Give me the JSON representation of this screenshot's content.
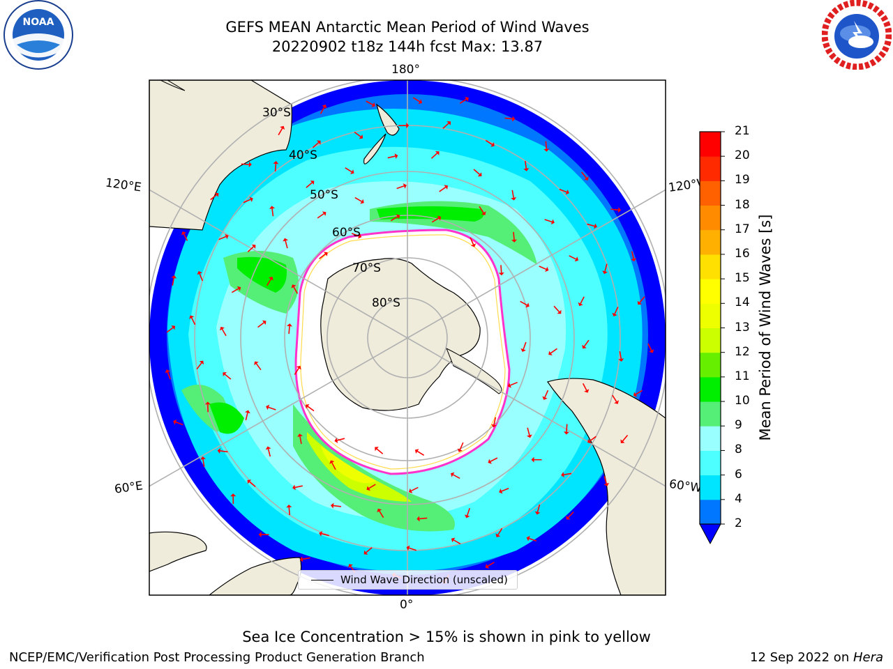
{
  "header": {
    "title_line1": "GEFS MEAN Antarctic Mean Period of Wind Waves",
    "title_line2": "20220902 t18z 144h fcst   Max: 13.87"
  },
  "logos": {
    "left": {
      "name": "noaa-logo",
      "text": "NOAA"
    },
    "right": {
      "name": "national-weather-service-logo",
      "text": "NATIONAL WEATHER SERVICE"
    }
  },
  "map": {
    "projection": "south-polar-stereographic",
    "longitude_labels": {
      "top": "180°",
      "bottom": "0°",
      "upper_left": "120°E",
      "lower_left": "60°E",
      "upper_right": "120°W",
      "lower_right": "60°W"
    },
    "latitude_labels": [
      "30°S",
      "40°S",
      "50°S",
      "60°S",
      "70°S",
      "80°S"
    ],
    "colors": {
      "land": "#efecdc",
      "ice_edge": "#ff33cc",
      "arrow": "#ff0000",
      "grid": "#b0b0b0"
    },
    "legend": {
      "label": "Wind Wave Direction (unscaled)"
    }
  },
  "colorbar": {
    "label": "Mean Period of Wind Waves [s]",
    "ticks": [
      "2",
      "4",
      "6",
      "8",
      "9",
      "10",
      "11",
      "12",
      "13",
      "14",
      "15",
      "16",
      "17",
      "18",
      "19",
      "20",
      "21"
    ],
    "colors": [
      "#0077ff",
      "#00e5ff",
      "#4dffff",
      "#99ffff",
      "#55ee77",
      "#00ee00",
      "#66f000",
      "#ccff00",
      "#eeff00",
      "#ffff00",
      "#ffe000",
      "#ffb000",
      "#ff8c00",
      "#ff6000",
      "#ff2a00",
      "#ff0000"
    ],
    "extend_color": "#0000ff"
  },
  "notes": {
    "sea_ice": "Sea Ice Concentration > 15% is shown in pink to yellow"
  },
  "footer": {
    "left": "NCEP/EMC/Verification Post Processing Product Generation Branch",
    "date": "12 Sep 2022 on ",
    "machine": "Hera"
  }
}
